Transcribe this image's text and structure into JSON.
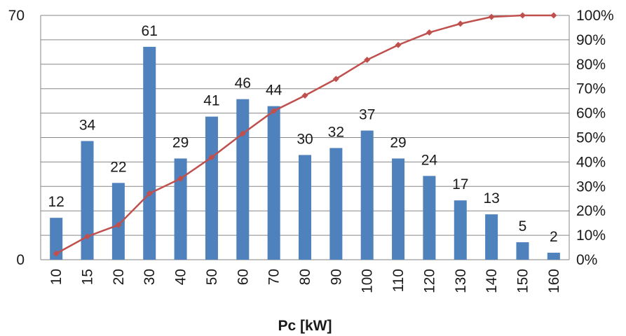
{
  "chart_data": {
    "type": "bar",
    "categories": [
      "10",
      "15",
      "20",
      "30",
      "40",
      "50",
      "60",
      "70",
      "80",
      "90",
      "100",
      "110",
      "120",
      "130",
      "140",
      "150",
      "160"
    ],
    "series": [
      {
        "type": "bar",
        "axis": "left",
        "color": "#4f81bd",
        "values": [
          12,
          34,
          22,
          61,
          29,
          41,
          46,
          44,
          30,
          32,
          37,
          29,
          24,
          17,
          13,
          5,
          2
        ],
        "data_labels": [
          "12",
          "34",
          "22",
          "61",
          "29",
          "41",
          "46",
          "44",
          "30",
          "32",
          "37",
          "29",
          "24",
          "17",
          "13",
          "5",
          "2"
        ]
      },
      {
        "type": "line",
        "axis": "right",
        "color": "#c0504d",
        "marker": "diamond",
        "values": [
          2.5,
          9.5,
          14.2,
          27.1,
          33.2,
          41.9,
          51.6,
          60.9,
          67.2,
          74.0,
          81.8,
          87.9,
          93.0,
          96.6,
          99.4,
          100.0,
          100.0
        ]
      }
    ],
    "xlabel": "Pc [kW]",
    "ylim": [
      0,
      70
    ],
    "yticks": [
      "0",
      "70"
    ],
    "y2lim": [
      0,
      100
    ],
    "y2ticks": [
      "0%",
      "10%",
      "20%",
      "30%",
      "40%",
      "50%",
      "60%",
      "70%",
      "80%",
      "90%",
      "100%"
    ],
    "grid": true,
    "legend": "none"
  }
}
